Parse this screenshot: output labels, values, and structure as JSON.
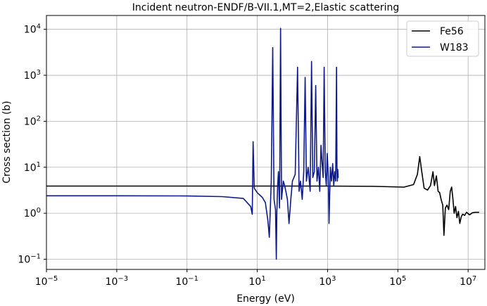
{
  "chart_data": {
    "type": "line",
    "title": "Incident neutron-ENDF/B-VII.1,MT=2,Elastic scattering",
    "xlabel": "Energy (eV)",
    "ylabel": "Cross section (b)",
    "xscale": "log",
    "yscale": "log",
    "xlim": [
      1e-05,
      30000000.0
    ],
    "ylim": [
      0.06,
      20000
    ],
    "grid": true,
    "legend_position": "top-right",
    "x_ticks": [
      {
        "value": 1e-05,
        "base": "10",
        "exp": "−5"
      },
      {
        "value": 0.001,
        "base": "10",
        "exp": "−3"
      },
      {
        "value": 0.1,
        "base": "10",
        "exp": "−1"
      },
      {
        "value": 10.0,
        "base": "10",
        "exp": "1"
      },
      {
        "value": 1000.0,
        "base": "10",
        "exp": "3"
      },
      {
        "value": 100000.0,
        "base": "10",
        "exp": "5"
      },
      {
        "value": 10000000.0,
        "base": "10",
        "exp": "7"
      }
    ],
    "y_ticks": [
      {
        "value": 0.1,
        "base": "10",
        "exp": "−1"
      },
      {
        "value": 1,
        "base": "10",
        "exp": "0"
      },
      {
        "value": 10,
        "base": "10",
        "exp": "1"
      },
      {
        "value": 100,
        "base": "10",
        "exp": "2"
      },
      {
        "value": 1000,
        "base": "10",
        "exp": "3"
      },
      {
        "value": 10000,
        "base": "10",
        "exp": "4"
      }
    ],
    "series": [
      {
        "name": "Fe56",
        "color": "#000000",
        "points": [
          [
            1e-05,
            3.9
          ],
          [
            1,
            3.9
          ],
          [
            1000,
            3.9
          ],
          [
            20000,
            3.85
          ],
          [
            150000,
            3.7
          ],
          [
            280000,
            4.2
          ],
          [
            360000,
            7
          ],
          [
            420000,
            17
          ],
          [
            480000,
            8
          ],
          [
            560000,
            3.5
          ],
          [
            700000,
            3.2
          ],
          [
            850000,
            4
          ],
          [
            1000000,
            8
          ],
          [
            1100000,
            4
          ],
          [
            1250000,
            6.5
          ],
          [
            1400000,
            3
          ],
          [
            1550000,
            2.8
          ],
          [
            1700000,
            2
          ],
          [
            1900000,
            1.5
          ],
          [
            2050000,
            0.33
          ],
          [
            2250000,
            1.3
          ],
          [
            2500000,
            1.5
          ],
          [
            2800000,
            1.2
          ],
          [
            3100000,
            3
          ],
          [
            3400000,
            3.7
          ],
          [
            3700000,
            2
          ],
          [
            4000000,
            1
          ],
          [
            4400000,
            1.4
          ],
          [
            4800000,
            0.8
          ],
          [
            5300000,
            1.1
          ],
          [
            5800000,
            0.6
          ],
          [
            6400000,
            0.85
          ],
          [
            7000000,
            0.95
          ],
          [
            8000000,
            0.9
          ],
          [
            9000000,
            1.05
          ],
          [
            11000000,
            0.92
          ],
          [
            13000000,
            1.02
          ],
          [
            16000000,
            1.05
          ],
          [
            20000000,
            1.05
          ]
        ]
      },
      {
        "name": "W183",
        "color": "#0d1a8c",
        "points": [
          [
            1e-05,
            2.4
          ],
          [
            0.001,
            2.4
          ],
          [
            0.1,
            2.38
          ],
          [
            1,
            2.3
          ],
          [
            4,
            2.1
          ],
          [
            6.5,
            1.4
          ],
          [
            7.2,
            0.95
          ],
          [
            7.6,
            36
          ],
          [
            8.2,
            3.5
          ],
          [
            10,
            2.8
          ],
          [
            14,
            2.2
          ],
          [
            17,
            1.7
          ],
          [
            20,
            0.7
          ],
          [
            22,
            0.3
          ],
          [
            25,
            5
          ],
          [
            27.5,
            4000
          ],
          [
            30,
            2
          ],
          [
            33,
            1.2
          ],
          [
            34.8,
            0.1
          ],
          [
            36,
            1
          ],
          [
            38,
            4
          ],
          [
            40,
            8
          ],
          [
            43,
            1.3
          ],
          [
            46,
            10500
          ],
          [
            49,
            2
          ],
          [
            55,
            5
          ],
          [
            60,
            4
          ],
          [
            65,
            3
          ],
          [
            72,
            2
          ],
          [
            80,
            0.6
          ],
          [
            90,
            2
          ],
          [
            100,
            5
          ],
          [
            120,
            7
          ],
          [
            140,
            1500
          ],
          [
            155,
            3
          ],
          [
            170,
            5
          ],
          [
            190,
            2
          ],
          [
            210,
            8
          ],
          [
            230,
            900
          ],
          [
            250,
            5
          ],
          [
            280,
            10
          ],
          [
            320,
            3
          ],
          [
            350,
            2000
          ],
          [
            380,
            6
          ],
          [
            420,
            8
          ],
          [
            460,
            600
          ],
          [
            500,
            5
          ],
          [
            550,
            10
          ],
          [
            600,
            3
          ],
          [
            650,
            30
          ],
          [
            700,
            12
          ],
          [
            750,
            6
          ],
          [
            800,
            1500
          ],
          [
            860,
            8
          ],
          [
            920,
            4
          ],
          [
            980,
            20
          ],
          [
            1050,
            6
          ],
          [
            1100,
            0.6
          ],
          [
            1200,
            10
          ],
          [
            1300,
            5
          ],
          [
            1400,
            12
          ],
          [
            1500,
            4
          ],
          [
            1600,
            8
          ],
          [
            1700,
            5
          ],
          [
            1800,
            1500
          ],
          [
            1850,
            10
          ],
          [
            1900,
            5
          ],
          [
            1950,
            9
          ],
          [
            2000,
            6
          ]
        ]
      }
    ]
  }
}
